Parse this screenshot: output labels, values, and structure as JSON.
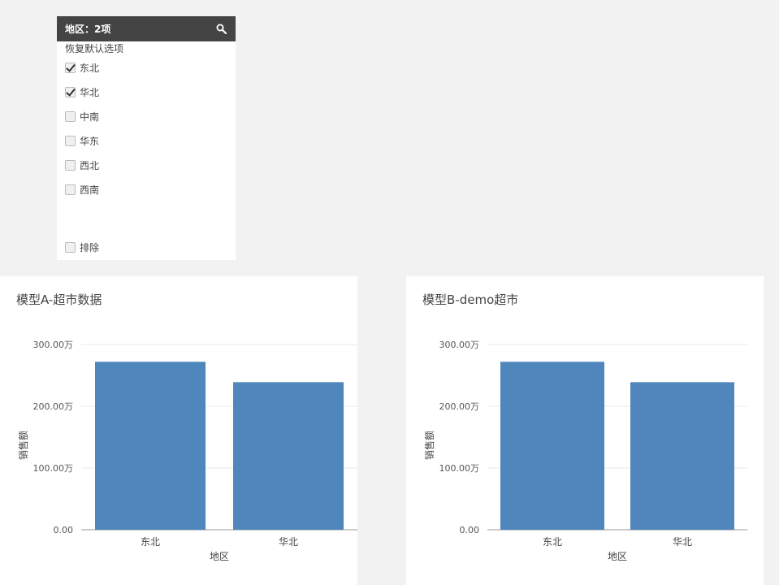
{
  "filter": {
    "title": "地区：2项",
    "reset_label": "恢复默认选项",
    "options": [
      {
        "label": "东北",
        "checked": true
      },
      {
        "label": "华北",
        "checked": true
      },
      {
        "label": "中南",
        "checked": false
      },
      {
        "label": "华东",
        "checked": false
      },
      {
        "label": "西北",
        "checked": false
      },
      {
        "label": "西南",
        "checked": false
      }
    ],
    "exclude_label": "排除",
    "exclude_checked": false
  },
  "charts": [
    {
      "title": "模型A-超市数据"
    },
    {
      "title": "模型B-demo超市"
    }
  ],
  "chart_data": [
    {
      "type": "bar",
      "title": "模型A-超市数据",
      "categories": [
        "东北",
        "华北"
      ],
      "values": [
        2720000,
        2390000
      ],
      "xlabel": "地区",
      "ylabel": "销售额",
      "ylim": [
        0,
        3000000
      ],
      "yticks": [
        {
          "value": 0,
          "label": "0.00"
        },
        {
          "value": 1000000,
          "label": "100.00万"
        },
        {
          "value": 2000000,
          "label": "200.00万"
        },
        {
          "value": 3000000,
          "label": "300.00万"
        }
      ],
      "color": "#4f86bb",
      "grid": true
    },
    {
      "type": "bar",
      "title": "模型B-demo超市",
      "categories": [
        "东北",
        "华北"
      ],
      "values": [
        2720000,
        2390000
      ],
      "xlabel": "地区",
      "ylabel": "销售额",
      "ylim": [
        0,
        3000000
      ],
      "yticks": [
        {
          "value": 0,
          "label": "0.00"
        },
        {
          "value": 1000000,
          "label": "100.00万"
        },
        {
          "value": 2000000,
          "label": "200.00万"
        },
        {
          "value": 3000000,
          "label": "300.00万"
        }
      ],
      "color": "#4f86bb",
      "grid": true
    }
  ]
}
